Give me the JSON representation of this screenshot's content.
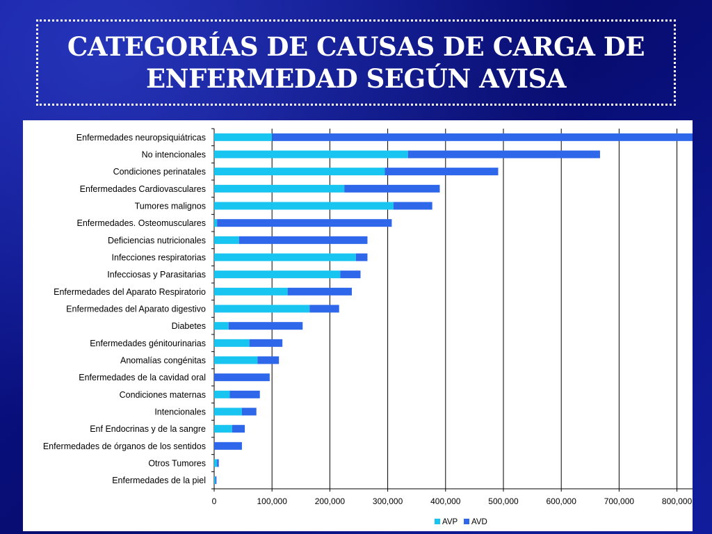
{
  "slide": {
    "title_line1": "CATEGORÍAS DE CAUSAS DE CARGA DE",
    "title_line2": "ENFERMEDAD SEGÚN AVISA"
  },
  "chart_data": {
    "type": "bar",
    "orientation": "horizontal",
    "stacked": true,
    "categories": [
      "Enfermedades neuropsiquiátricas",
      "No intencionales",
      "Condiciones perinatales",
      "Enfermedades  Cardiovasculares",
      "Tumores malignos",
      "Enfermedades. Osteomusculares",
      "Deficiencias nutricionales",
      "Infecciones respiratorias",
      "Infecciosas y Parasitarias",
      "Enfermedades del  Aparato Respiratorio",
      "Enfermedades del Aparato digestivo",
      "Diabetes",
      "Enfermedades génitourinarias",
      "Anomalías congénitas",
      "Enfermedades de la cavidad oral",
      "Condiciones maternas",
      "Intencionales",
      "Enf Endocrinas y de la sangre",
      "Enfermedades de órganos de los sentidos",
      "Otros Tumores",
      "Enfermedades de la piel"
    ],
    "series": [
      {
        "name": "AVP",
        "color": "#18c4f0",
        "values": [
          100000,
          335000,
          295000,
          225000,
          310000,
          5000,
          43000,
          245000,
          218000,
          127000,
          165000,
          25000,
          61000,
          75000,
          0,
          27000,
          48000,
          31000,
          0,
          5000,
          2000
        ]
      },
      {
        "name": "AVD",
        "color": "#2f67ea",
        "values": [
          730000,
          332000,
          196000,
          165000,
          67000,
          302000,
          222000,
          20000,
          35000,
          111000,
          51000,
          128000,
          57000,
          37000,
          96000,
          52000,
          25000,
          22000,
          48000,
          3000,
          2000
        ]
      }
    ],
    "xlim": [
      0,
      800000
    ],
    "xticks": [
      "0",
      "100,000",
      "200,000",
      "300,000",
      "400,000",
      "500,000",
      "600,000",
      "700,000",
      "800,000"
    ],
    "gridlines": true,
    "legend_position": "bottom"
  }
}
